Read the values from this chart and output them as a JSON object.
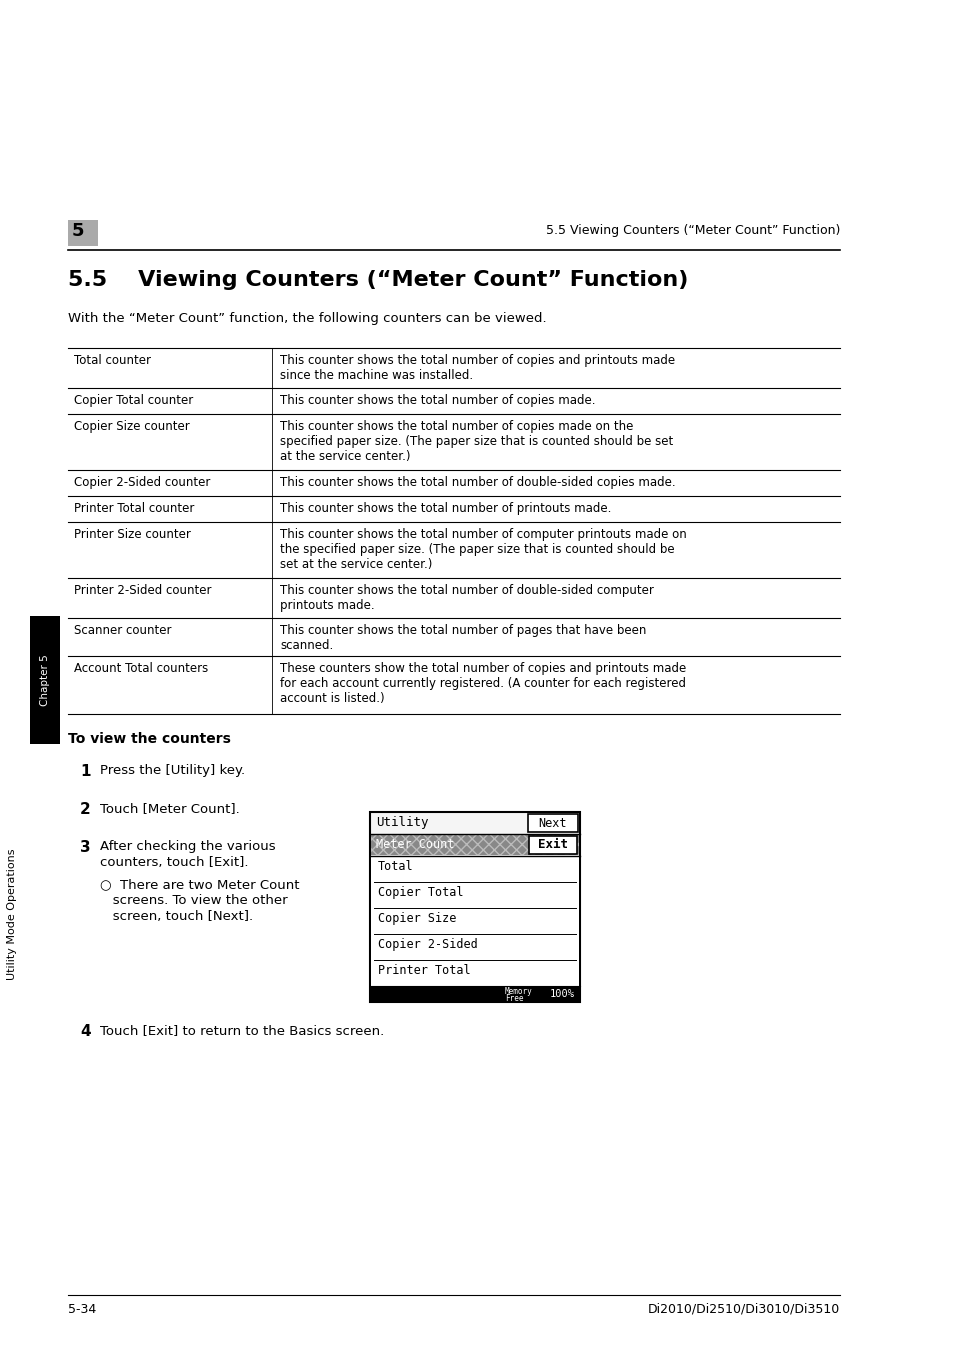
{
  "page_bg": "#ffffff",
  "header_num": "5",
  "header_num_bg": "#aaaaaa",
  "header_title": "5.5 Viewing Counters (“Meter Count” Function)",
  "section_title": "5.5    Viewing Counters (“Meter Count” Function)",
  "intro_text": "With the “Meter Count” function, the following counters can be viewed.",
  "table_rows": [
    {
      "left": "Total counter",
      "right": "This counter shows the total number of copies and printouts made\nsince the machine was installed."
    },
    {
      "left": "Copier Total counter",
      "right": "This counter shows the total number of copies made."
    },
    {
      "left": "Copier Size counter",
      "right": "This counter shows the total number of copies made on the\nspecified paper size. (The paper size that is counted should be set\nat the service center.)"
    },
    {
      "left": "Copier 2-Sided counter",
      "right": "This counter shows the total number of double-sided copies made."
    },
    {
      "left": "Printer Total counter",
      "right": "This counter shows the total number of printouts made."
    },
    {
      "left": "Printer Size counter",
      "right": "This counter shows the total number of computer printouts made on\nthe specified paper size. (The paper size that is counted should be\nset at the service center.)"
    },
    {
      "left": "Printer 2-Sided counter",
      "right": "This counter shows the total number of double-sided computer\nprintouts made."
    },
    {
      "left": "Scanner counter",
      "right": "This counter shows the total number of pages that have been\nscanned."
    },
    {
      "left": "Account Total counters",
      "right": "These counters show the total number of copies and printouts made\nfor each account currently registered. (A counter for each registered\naccount is listed.)"
    }
  ],
  "side_label": "Utility Mode Operations",
  "chapter_label": "Chapter 5",
  "to_view_title": "To view the counters",
  "steps_1_2": [
    {
      "num": "1",
      "text": "Press the [Utility] key."
    },
    {
      "num": "2",
      "text": "Touch [Meter Count]."
    }
  ],
  "step3_lines": [
    "After checking the various",
    "counters, touch [Exit].",
    "○  There are two Meter Count",
    "   screens. To view the other",
    "   screen, touch [Next]."
  ],
  "step4_text": "Touch [Exit] to return to the Basics screen.",
  "footer_left": "5-34",
  "footer_right": "Di2010/Di2510/Di3010/Di3510",
  "screen_items": [
    "Total",
    "Copier Total",
    "Copier Size",
    "Copier 2-Sided",
    "Printer Total"
  ]
}
